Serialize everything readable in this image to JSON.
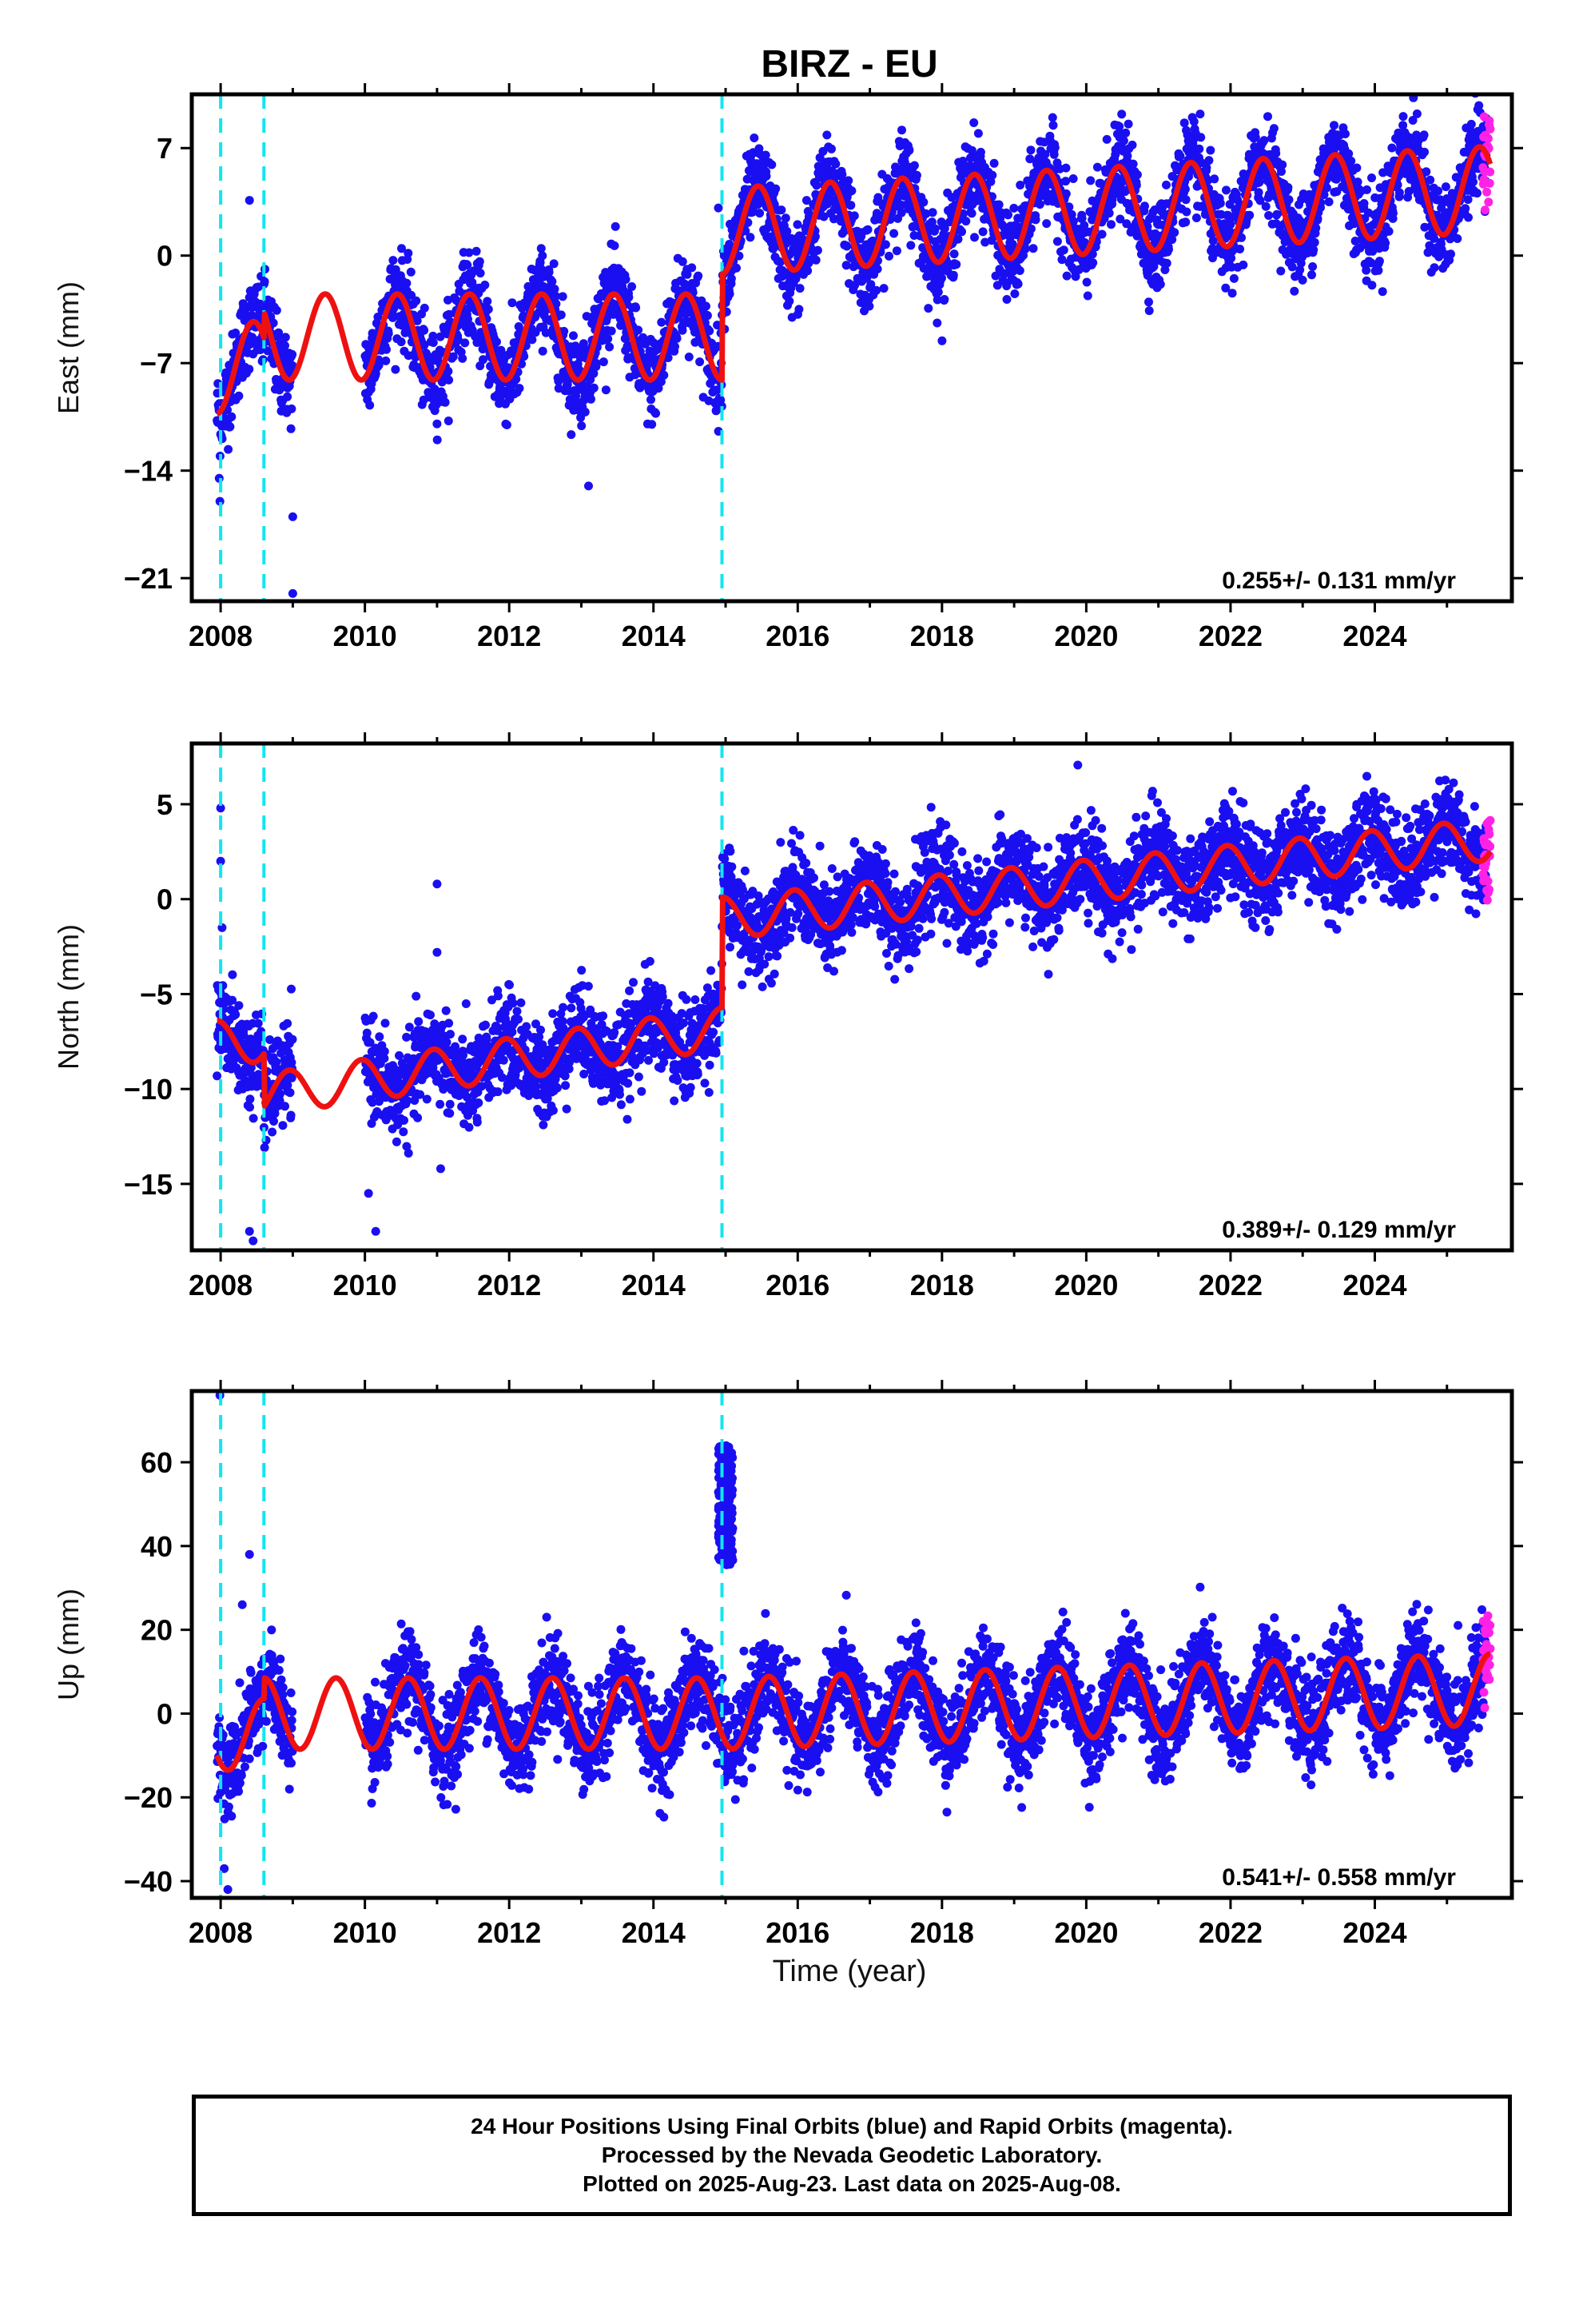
{
  "title": "BIRZ - EU",
  "x_axis_label": "Time (year)",
  "caption": [
    "24 Hour Positions Using Final Orbits (blue) and Rapid Orbits (magenta).",
    "Processed by the Nevada Geodetic Laboratory.",
    "Plotted on 2025-Aug-23. Last data on 2025-Aug-08."
  ],
  "colors": {
    "final_orbits": "#1a0ff0",
    "rapid_orbits": "#ff22e6",
    "model_fit": "#ee1111",
    "breaks": "#11e6f0",
    "frame": "#000000"
  },
  "chart_data": [
    {
      "type": "scatter",
      "ylabel": "East (mm)",
      "xlim": [
        2007.6,
        2025.9
      ],
      "ylim": [
        -22.5,
        10.5
      ],
      "x_ticks": [
        "2008",
        "2010",
        "2012",
        "2014",
        "2016",
        "2018",
        "2020",
        "2022",
        "2024"
      ],
      "y_ticks": [
        "7",
        "0",
        "−7",
        "−14",
        "−21"
      ],
      "y_tick_values": [
        7,
        0,
        -7,
        -14,
        -21
      ],
      "rate_text": "0.255+/- 0.131 mm/yr",
      "breaks": [
        2008.0,
        2008.6,
        2014.95
      ],
      "model": {
        "segments": [
          {
            "x0": 2007.95,
            "x1": 2008.6,
            "base": -7.5,
            "trend": 0.8
          },
          {
            "x0": 2008.6,
            "x1": 2014.95,
            "base": -5.3,
            "trend": 0.0
          },
          {
            "x0": 2014.95,
            "x1": 2025.6,
            "base": 1.6,
            "trend": 0.255
          }
        ],
        "amplitude": 2.8,
        "peak_phase": 0.45
      },
      "final_data_range": [
        2007.95,
        2025.55
      ],
      "gap": [
        2009.0,
        2010.0
      ],
      "rapid_range": [
        2025.5,
        2025.6
      ],
      "scatter_sd": 1.4,
      "outliers": [
        {
          "x": 2007.98,
          "y": -14.5
        },
        {
          "x": 2007.99,
          "y": -16
        },
        {
          "x": 2008.4,
          "y": 3.6
        },
        {
          "x": 2009.0,
          "y": -17
        },
        {
          "x": 2009.0,
          "y": -22
        },
        {
          "x": 2013.1,
          "y": -15
        },
        {
          "x": 2014.9,
          "y": 3.1
        }
      ]
    },
    {
      "type": "scatter",
      "ylabel": "North (mm)",
      "xlim": [
        2007.6,
        2025.9
      ],
      "ylim": [
        -18.5,
        8.2
      ],
      "x_ticks": [
        "2008",
        "2010",
        "2012",
        "2014",
        "2016",
        "2018",
        "2020",
        "2022",
        "2024"
      ],
      "y_ticks": [
        "5",
        "0",
        "−5",
        "−10",
        "−15"
      ],
      "y_tick_values": [
        5,
        0,
        -5,
        -10,
        -15
      ],
      "rate_text": "0.389+/- 0.129 mm/yr",
      "breaks": [
        2008.0,
        2008.6,
        2014.95
      ],
      "model": {
        "segments": [
          {
            "x0": 2007.95,
            "x1": 2008.6,
            "base": -7.5,
            "trend": 0.0
          },
          {
            "x0": 2008.6,
            "x1": 2014.95,
            "base": -10.3,
            "trend": 0.55
          },
          {
            "x0": 2014.95,
            "x1": 2025.6,
            "base": -1.0,
            "trend": 0.389
          }
        ],
        "amplitude": 1.1,
        "peak_phase": 0.95
      },
      "final_data_range": [
        2007.95,
        2025.55
      ],
      "gap": [
        2009.0,
        2010.0
      ],
      "rapid_range": [
        2025.5,
        2025.6
      ],
      "scatter_sd": 1.2,
      "outliers": [
        {
          "x": 2008.0,
          "y": 4.8
        },
        {
          "x": 2008.0,
          "y": 2.0
        },
        {
          "x": 2008.02,
          "y": -1.5
        },
        {
          "x": 2008.4,
          "y": -17.5
        },
        {
          "x": 2008.45,
          "y": -18
        },
        {
          "x": 2010.05,
          "y": -15.5
        },
        {
          "x": 2010.15,
          "y": -17.5
        },
        {
          "x": 2011.0,
          "y": 0.8
        },
        {
          "x": 2011.0,
          "y": -2.8
        },
        {
          "x": 2011.05,
          "y": -14.2
        }
      ]
    },
    {
      "type": "scatter",
      "ylabel": "Up (mm)",
      "xlim": [
        2007.6,
        2025.9
      ],
      "ylim": [
        -44,
        77
      ],
      "x_ticks": [
        "2008",
        "2010",
        "2012",
        "2014",
        "2016",
        "2018",
        "2020",
        "2022",
        "2024"
      ],
      "y_ticks": [
        "60",
        "40",
        "20",
        "0",
        "−20",
        "−40"
      ],
      "y_tick_values": [
        60,
        40,
        20,
        0,
        -20,
        -40
      ],
      "rate_text": "0.541+/- 0.558 mm/yr",
      "breaks": [
        2008.0,
        2008.6,
        2014.95
      ],
      "model": {
        "segments": [
          {
            "x0": 2007.95,
            "x1": 2008.6,
            "base": -5.0,
            "trend": 0.0
          },
          {
            "x0": 2008.6,
            "x1": 2014.95,
            "base": 0.0,
            "trend": 0.0
          },
          {
            "x0": 2014.95,
            "x1": 2025.6,
            "base": 0.0,
            "trend": 0.541
          }
        ],
        "amplitude": 8.5,
        "peak_phase": 0.6
      },
      "final_data_range": [
        2007.95,
        2025.55
      ],
      "gap": [
        2009.0,
        2010.0
      ],
      "rapid_range": [
        2025.5,
        2025.6
      ],
      "scatter_sd": 5.5,
      "cluster": {
        "x0": 2014.9,
        "x1": 2015.1,
        "y0": 35,
        "y1": 64
      },
      "outliers": [
        {
          "x": 2007.99,
          "y": 76
        },
        {
          "x": 2008.4,
          "y": 38
        },
        {
          "x": 2008.3,
          "y": 26
        },
        {
          "x": 2008.1,
          "y": -42
        },
        {
          "x": 2008.05,
          "y": -37
        }
      ]
    }
  ]
}
